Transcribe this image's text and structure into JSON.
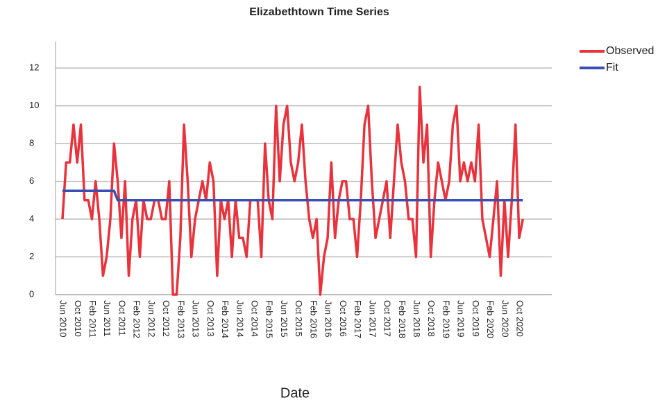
{
  "chart_data": {
    "type": "line",
    "title": "Elizabethtown Time Series",
    "x_label": "Date",
    "categories": [
      "Jun 2010",
      null,
      null,
      null,
      "Oct 2010",
      null,
      null,
      null,
      "Feb 2011",
      null,
      null,
      null,
      "Jun 2011",
      null,
      null,
      null,
      "Oct 2011",
      null,
      null,
      null,
      "Feb 2012",
      null,
      null,
      null,
      "Jun 2012",
      null,
      null,
      null,
      "Oct 2012",
      null,
      null,
      null,
      "Feb 2013",
      null,
      null,
      null,
      "Jun 2013",
      null,
      null,
      null,
      "Oct 2013",
      null,
      null,
      null,
      "Feb 2014",
      null,
      null,
      null,
      "Jun 2014",
      null,
      null,
      null,
      "Oct 2014",
      null,
      null,
      null,
      "Feb 2015",
      null,
      null,
      null,
      "Jun 2015",
      null,
      null,
      null,
      "Oct 2015",
      null,
      null,
      null,
      "Feb 2016",
      null,
      null,
      null,
      "Jun 2016",
      null,
      null,
      null,
      "Oct 2016",
      null,
      null,
      null,
      "Feb 2017",
      null,
      null,
      null,
      "Jun 2017",
      null,
      null,
      null,
      "Oct 2017",
      null,
      null,
      null,
      "Feb 2018",
      null,
      null,
      null,
      "Jun 2018",
      null,
      null,
      null,
      "Oct 2018",
      null,
      null,
      null,
      "Feb 2019",
      null,
      null,
      null,
      "Jun 2019",
      null,
      null,
      null,
      "Oct 2019",
      null,
      null,
      null,
      "Feb 2020",
      null,
      null,
      null,
      "Jun 2020",
      null,
      null,
      null,
      "Oct 2020",
      null
    ],
    "series": [
      {
        "name": "Observed",
        "color": "#e8323c",
        "values": [
          4,
          7,
          7,
          9,
          7,
          9,
          5,
          5,
          4,
          6,
          4,
          1,
          2,
          4,
          8,
          6,
          3,
          6,
          1,
          4,
          5,
          2,
          5,
          4,
          4,
          5,
          5,
          4,
          4,
          6,
          0,
          0,
          3,
          9,
          6,
          2,
          4,
          5,
          6,
          5,
          7,
          6,
          1,
          5,
          4,
          5,
          2,
          5,
          3,
          3,
          2,
          5,
          5,
          5,
          2,
          8,
          5,
          4,
          10,
          6,
          9,
          10,
          7,
          6,
          7,
          9,
          6,
          4,
          3,
          4,
          0,
          2,
          3,
          7,
          3,
          5,
          6,
          6,
          4,
          4,
          2,
          5,
          9,
          10,
          6,
          3,
          4,
          5,
          6,
          3,
          6,
          9,
          7,
          6,
          4,
          4,
          2,
          11,
          7,
          9,
          2,
          5,
          7,
          6,
          5,
          6,
          9,
          10,
          6,
          7,
          6,
          7,
          6,
          9,
          4,
          3,
          2,
          4,
          6,
          1,
          5,
          2,
          5,
          9,
          3,
          4
        ]
      },
      {
        "name": "Fit",
        "color": "#3a4fb0",
        "values": [
          5.5,
          5.5,
          5.5,
          5.5,
          5.5,
          5.5,
          5.5,
          5.5,
          5.5,
          5.5,
          5.5,
          5.5,
          5.5,
          5.5,
          5.5,
          5,
          5,
          5,
          5,
          5,
          5,
          5,
          5,
          5,
          5,
          5,
          5,
          5,
          5,
          5,
          5,
          5,
          5,
          5,
          5,
          5,
          5,
          5,
          5,
          5,
          5,
          5,
          5,
          5,
          5,
          5,
          5,
          5,
          5,
          5,
          5,
          5,
          5,
          5,
          5,
          5,
          5,
          5,
          5,
          5,
          5,
          5,
          5,
          5,
          5,
          5,
          5,
          5,
          5,
          5,
          5,
          5,
          5,
          5,
          5,
          5,
          5,
          5,
          5,
          5,
          5,
          5,
          5,
          5,
          5,
          5,
          5,
          5,
          5,
          5,
          5,
          5,
          5,
          5,
          5,
          5,
          5,
          5,
          5,
          5,
          5,
          5,
          5,
          5,
          5,
          5,
          5,
          5,
          5,
          5,
          5,
          5,
          5,
          5,
          5,
          5,
          5,
          5,
          5,
          5,
          5,
          5,
          5,
          5,
          5,
          5
        ]
      }
    ],
    "ylim": [
      0,
      13.4
    ],
    "yticks": [
      0,
      2,
      4,
      6,
      8,
      10,
      12
    ],
    "grid": true,
    "legend": "right"
  }
}
